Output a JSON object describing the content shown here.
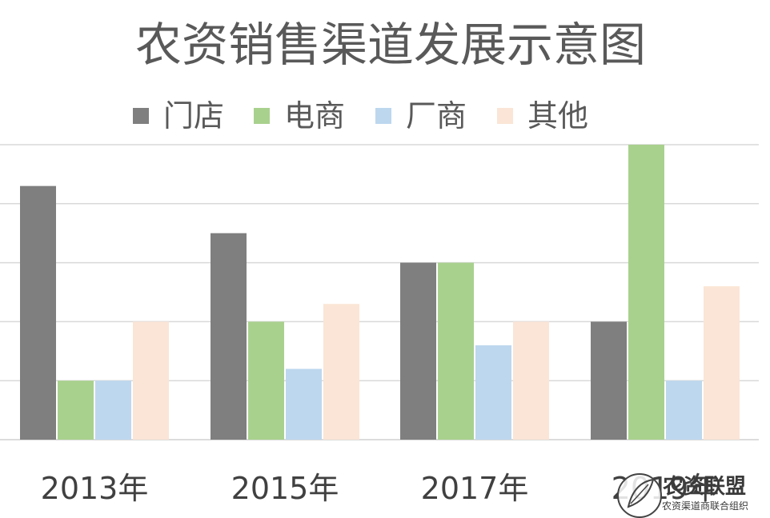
{
  "chart_data": {
    "type": "bar",
    "title": "农资销售渠道发展示意图",
    "categories": [
      "2013年",
      "2015年",
      "2017年",
      "2019年"
    ],
    "series": [
      {
        "name": "门店",
        "color": "#7f7f7f",
        "values": [
          4.3,
          3.5,
          3.0,
          2.0
        ]
      },
      {
        "name": "电商",
        "color": "#a9d18e",
        "values": [
          1.0,
          2.0,
          3.0,
          5.0
        ]
      },
      {
        "name": "厂商",
        "color": "#bdd7ee",
        "values": [
          1.0,
          1.2,
          1.6,
          1.0
        ]
      },
      {
        "name": "其他",
        "color": "#fbe5d6",
        "values": [
          2.0,
          2.3,
          2.0,
          2.6
        ]
      }
    ],
    "ylim": [
      0,
      5
    ],
    "grid": true,
    "legend_position": "top",
    "xlabel": "",
    "ylabel": ""
  },
  "watermark": {
    "name": "农资联盟",
    "subtitle": "农资渠道商联合组织",
    "icon": "leaf-seal-icon"
  }
}
